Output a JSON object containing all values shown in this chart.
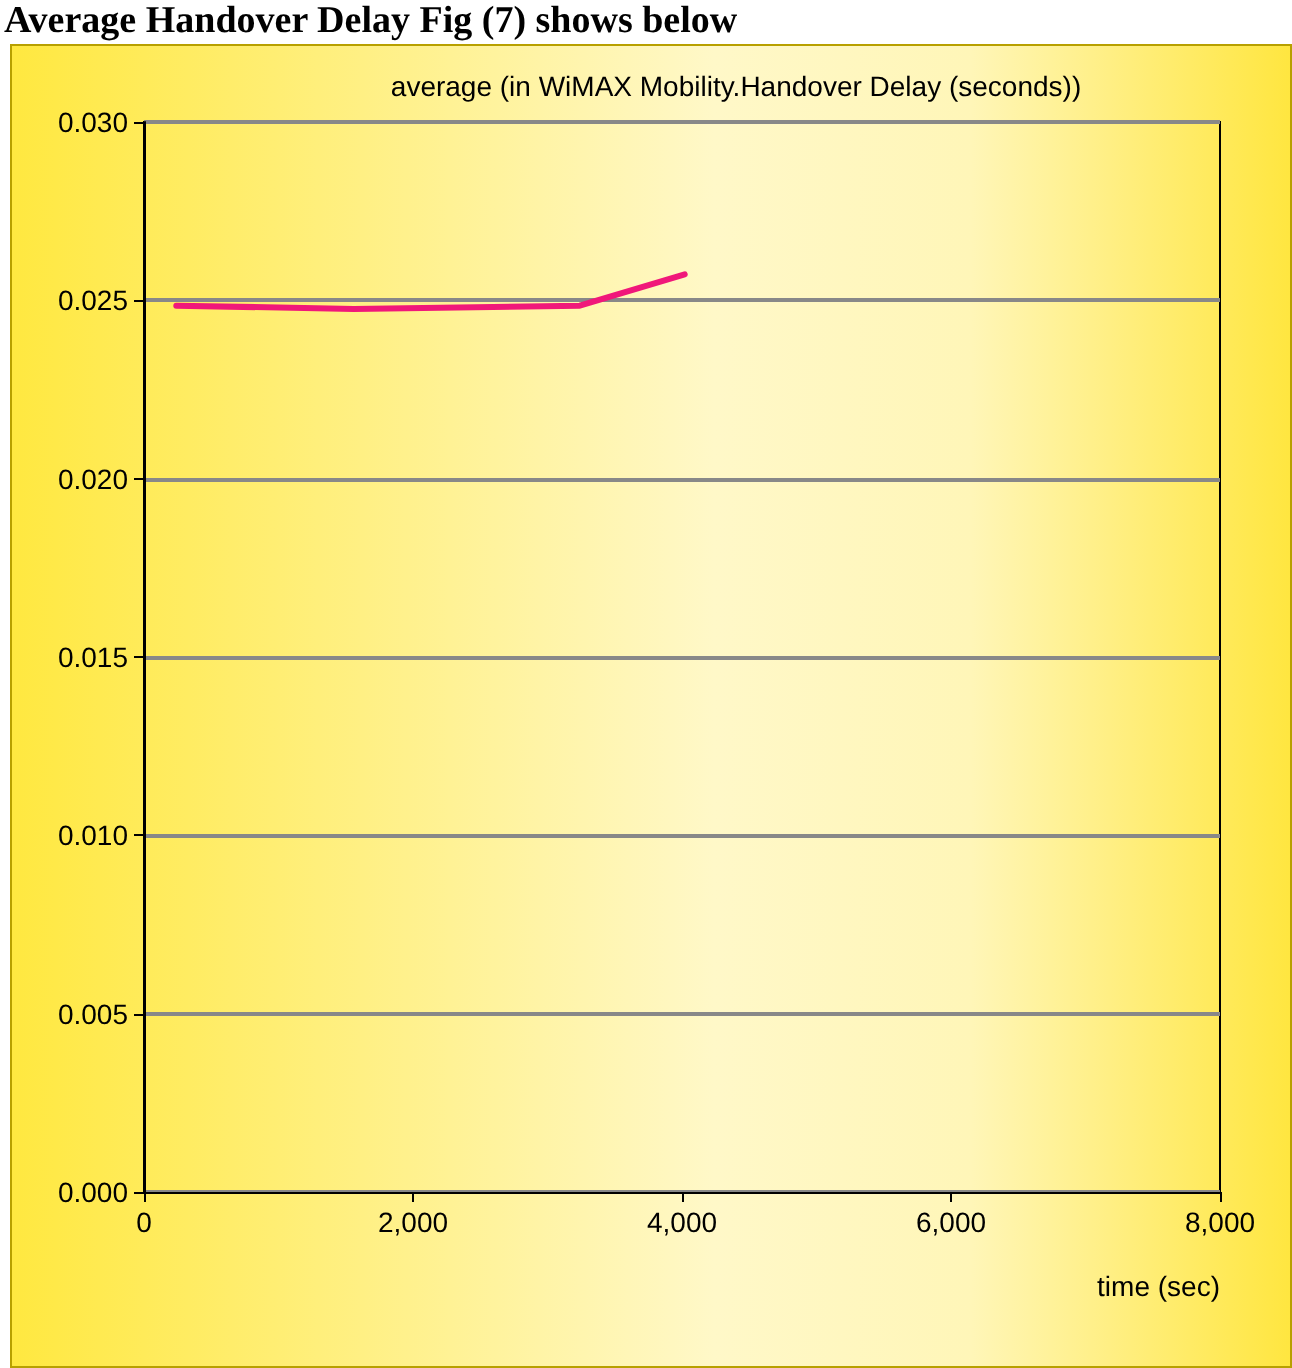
{
  "chart_data": {
    "type": "line",
    "title": "average (in WiMAX Mobility.Handover Delay (seconds))",
    "xlabel": "time (sec)",
    "annotations": [
      "Average Handover Delay Fig (7) shows below"
    ],
    "x": [
      240,
      1560,
      3240,
      4020
    ],
    "series": [
      {
        "color": "#f0187a",
        "values": [
          0.02485,
          0.02476,
          0.02485,
          0.02573
        ]
      }
    ],
    "xlim": [
      0,
      8000
    ],
    "xticks": [
      {
        "value": 0,
        "label": "0"
      },
      {
        "value": 2000,
        "label": "2,000"
      },
      {
        "value": 4000,
        "label": "4,000"
      },
      {
        "value": 6000,
        "label": "6,000"
      },
      {
        "value": 8000,
        "label": "8,000"
      }
    ],
    "ylim": [
      0,
      0.03
    ],
    "yticks": [
      {
        "value": 0,
        "label": "0.000"
      },
      {
        "value": 0.005,
        "label": "0.005"
      },
      {
        "value": 0.01,
        "label": "0.010"
      },
      {
        "value": 0.015,
        "label": "0.015"
      },
      {
        "value": 0.02,
        "label": "0.020"
      },
      {
        "value": 0.025,
        "label": "0.025"
      },
      {
        "value": 0.03,
        "label": "0.030"
      }
    ],
    "grid": "y",
    "marker": "none",
    "line_style": "solid"
  }
}
